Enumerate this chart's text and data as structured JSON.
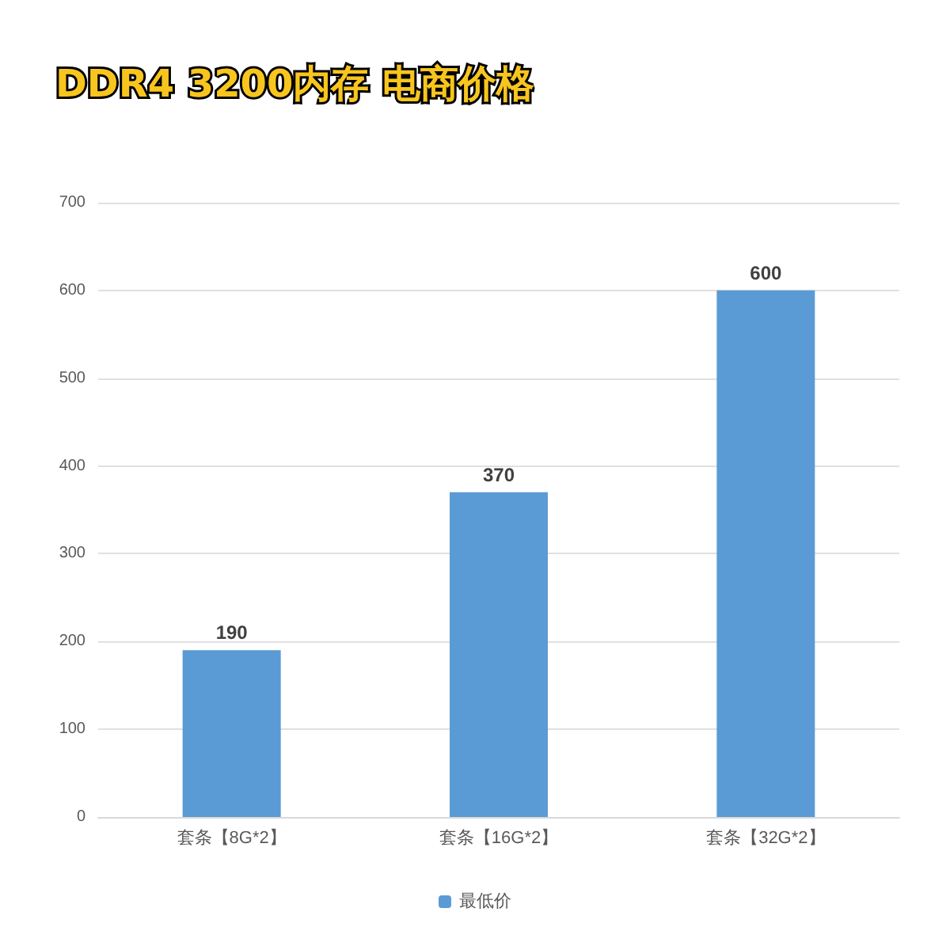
{
  "chart_data": {
    "type": "bar",
    "title": "DDR4 3200内存 电商价格",
    "categories": [
      "套条【8G*2】",
      "套条【16G*2】",
      "套条【32G*2】"
    ],
    "series": [
      {
        "name": "最低价",
        "color": "#5b9bd5",
        "values": [
          190,
          370,
          600
        ]
      }
    ],
    "ylim": [
      0,
      700
    ],
    "yticks": [
      0,
      100,
      200,
      300,
      400,
      500,
      600,
      700
    ],
    "grid": "y",
    "legend": "bottom",
    "data_labels": true
  }
}
